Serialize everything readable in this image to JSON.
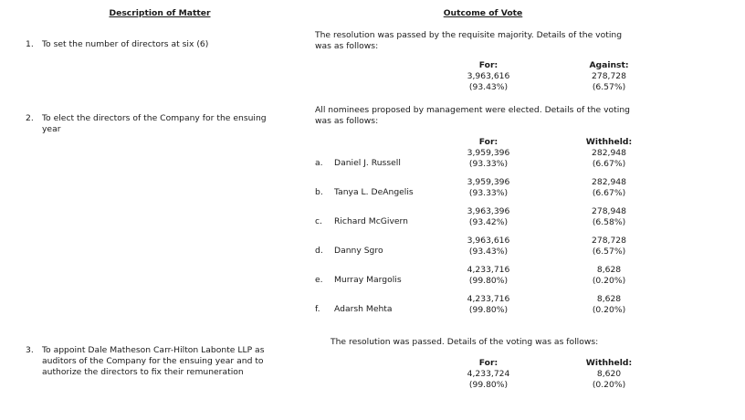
{
  "headers": {
    "description": "Description of Matter",
    "outcome": "Outcome of Vote"
  },
  "items": [
    {
      "number": "1.",
      "description": [
        "To set the number of directors at six (6)"
      ],
      "outcome": [
        "The resolution was passed by the requisite majority. Details of the voting",
        "was as follows:"
      ],
      "for_label": "For:",
      "for_votes": "3,963,616",
      "for_pct": "(93.43%)",
      "against_label": "Against:",
      "against_votes": "278,728",
      "against_pct": "(6.57%)"
    },
    {
      "number": "2.",
      "description": [
        "To elect the directors of the Company for the ensuing",
        "year"
      ],
      "outcome": [
        "All nominees proposed by management were elected. Details of the voting",
        "was as follows:"
      ],
      "for_label": "For:",
      "withheld_label": "Withheld:",
      "nominees": [
        {
          "letter": "a.",
          "name": "Daniel J. Russell",
          "for_votes": "3,959,396",
          "for_pct": "(93.33%)",
          "withheld_votes": "282,948",
          "withheld_pct": "(6.67%)"
        },
        {
          "letter": "b.",
          "name": "Tanya L. DeAngelis",
          "for_votes": "3,959,396",
          "for_pct": "(93.33%)",
          "withheld_votes": "282,948",
          "withheld_pct": "(6.67%)"
        },
        {
          "letter": "c.",
          "name": "Richard McGivern",
          "for_votes": "3,963,396",
          "for_pct": "(93.42%)",
          "withheld_votes": "278,948",
          "withheld_pct": "(6.58%)"
        },
        {
          "letter": "d.",
          "name": "Danny Sgro",
          "for_votes": "3,963,616",
          "for_pct": "(93.43%)",
          "withheld_votes": "278,728",
          "withheld_pct": "(6.57%)"
        },
        {
          "letter": "e.",
          "name": "Murray Margolis",
          "for_votes": "4,233,716",
          "for_pct": "(99.80%)",
          "withheld_votes": "8,628",
          "withheld_pct": "(0.20%)"
        },
        {
          "letter": "f.",
          "name": "Adarsh Mehta",
          "for_votes": "4,233,716",
          "for_pct": "(99.80%)",
          "withheld_votes": "8,628",
          "withheld_pct": "(0.20%)"
        }
      ]
    },
    {
      "number": "3.",
      "description": [
        "To appoint Dale Matheson Carr-Hilton Labonte LLP as",
        "auditors of the Company for the ensuing year and to",
        "authorize the directors to fix their remuneration"
      ],
      "outcome": [
        "The resolution was passed. Details of the voting was as follows:"
      ],
      "for_label": "For:",
      "for_votes": "4,233,724",
      "for_pct": "(99.80%)",
      "withheld_label": "Withheld:",
      "withheld_votes": "8,620",
      "withheld_pct": "(0.20%)"
    }
  ]
}
